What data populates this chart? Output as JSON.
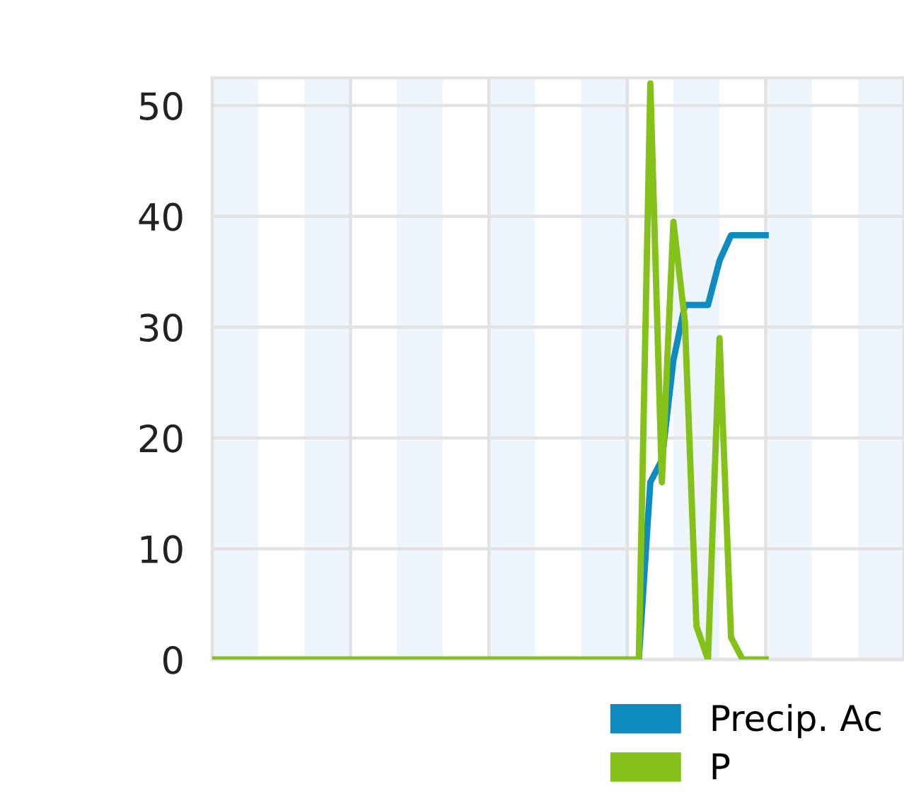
{
  "chart_data": {
    "type": "line",
    "categories": [
      null,
      null,
      null,
      null,
      null,
      null,
      null,
      null,
      null,
      null,
      null,
      null,
      null,
      null,
      null,
      null,
      null,
      null,
      null,
      null,
      null,
      null,
      null,
      null,
      null,
      null,
      null,
      null,
      null,
      null,
      null,
      null,
      null,
      null,
      null,
      null,
      null,
      null,
      null,
      null,
      null,
      null,
      null,
      null,
      null,
      null,
      null,
      null,
      null,
      null,
      null,
      null,
      null,
      null,
      null,
      null,
      null,
      null,
      null,
      null,
      null
    ],
    "series": [
      {
        "name": "Precip. Ac",
        "color": "#0e8bbf",
        "values": [
          null,
          null,
          null,
          null,
          null,
          null,
          null,
          null,
          null,
          null,
          null,
          null,
          null,
          null,
          null,
          null,
          null,
          null,
          null,
          null,
          null,
          null,
          null,
          null,
          null,
          null,
          null,
          null,
          null,
          null,
          null,
          null,
          null,
          null,
          null,
          null,
          null,
          0,
          16,
          18,
          27,
          32,
          32,
          32,
          36,
          38.3,
          38.3,
          38.3,
          38.3,
          null,
          null,
          null,
          null,
          null,
          null,
          null,
          null,
          null,
          null,
          null,
          null
        ]
      },
      {
        "name": "P",
        "color": "#84c21a",
        "values": [
          0,
          0,
          0,
          0,
          0,
          0,
          0,
          0,
          0,
          0,
          0,
          0,
          0,
          0,
          0,
          0,
          0,
          0,
          0,
          0,
          0,
          0,
          0,
          0,
          0,
          0,
          0,
          0,
          0,
          0,
          0,
          0,
          0,
          0,
          0,
          0,
          0,
          0,
          52,
          16,
          39.5,
          30.5,
          3,
          0,
          29,
          2,
          0,
          0,
          0,
          null,
          null,
          null,
          null,
          null,
          null,
          null,
          null,
          null,
          null,
          null,
          null
        ]
      }
    ],
    "ylim": [
      0,
      52.5
    ],
    "yticks": [
      0,
      10,
      20,
      30,
      40,
      50
    ],
    "grid": true,
    "legend": "bottom right",
    "marker": "none",
    "line_style": "solid"
  }
}
